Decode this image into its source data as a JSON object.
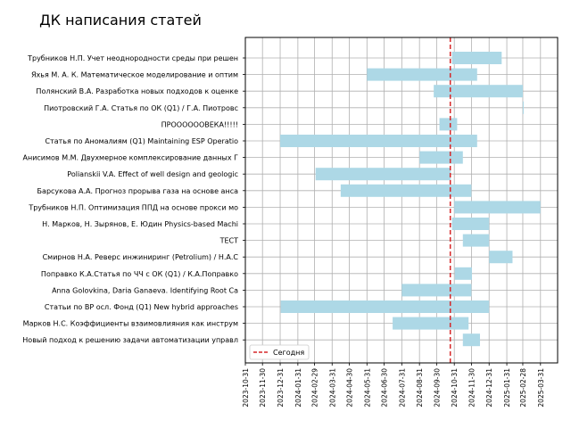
{
  "chart_data": {
    "type": "gantt",
    "title": "ДК написания статей",
    "xlabel": "",
    "ylabel": "",
    "xlim": [
      "2023-10-31",
      "2025-04-30"
    ],
    "grid": true,
    "x_ticks": [
      "2023-10-31",
      "2023-11-30",
      "2023-12-31",
      "2024-01-31",
      "2024-02-29",
      "2024-03-31",
      "2024-04-30",
      "2024-05-31",
      "2024-06-30",
      "2024-07-31",
      "2024-08-31",
      "2024-09-30",
      "2024-10-31",
      "2024-11-30",
      "2024-12-31",
      "2025-01-31",
      "2025-02-28",
      "2025-03-31"
    ],
    "bar_color": "#add8e6",
    "today": {
      "date": "2024-10-24",
      "label": "Сегодня",
      "color": "#d62728"
    },
    "legend_position": "lower-left",
    "tasks": [
      {
        "name": "Трубников Н.П. Учет неоднородности среды при решен",
        "start": "2024-10-27",
        "end": "2025-01-22"
      },
      {
        "name": "Яхья М. А. К. Математическое моделирование и оптим",
        "start": "2024-05-31",
        "end": "2024-12-10"
      },
      {
        "name": "Полянский В.А. Разработка новых подходов к оценке ",
        "start": "2024-09-25",
        "end": "2025-02-28"
      },
      {
        "name": "Пиотровский Г.А. Статья по ОК (Q1) / Г.А. Пиотровс",
        "start": "2025-02-28",
        "end": "2025-03-01"
      },
      {
        "name": "ПРООООООВЕКА!!!!!",
        "start": "2024-10-05",
        "end": "2024-11-05"
      },
      {
        "name": "Статья по Аномалиям (Q1)  Maintaining ESP Operatio",
        "start": "2023-12-31",
        "end": "2024-12-10"
      },
      {
        "name": "Анисимов М.М. Двухмерное комплексирование данных Г",
        "start": "2024-08-31",
        "end": "2024-11-15"
      },
      {
        "name": "Polianskii V.A. Effect of well design and geologic",
        "start": "2024-03-02",
        "end": "2024-10-25"
      },
      {
        "name": "Барсукова А.А. Прогноз прорыва газа на основе анса",
        "start": "2024-04-15",
        "end": "2024-11-30"
      },
      {
        "name": "Трубников Н.П. Оптимизация ППД на основе прокси мо",
        "start": "2024-10-31",
        "end": "2025-03-31"
      },
      {
        "name": "Н. Марков, Н. Зырянов, Е. Юдин Physics-based Machi",
        "start": "2024-10-27",
        "end": "2024-12-31"
      },
      {
        "name": "ТЕСТ",
        "start": "2024-11-15",
        "end": "2024-12-31"
      },
      {
        "name": "Смирнов Н.А. Реверс инжиниринг (Petrolium) / Н.А.С",
        "start": "2024-12-31",
        "end": "2025-02-10"
      },
      {
        "name": "Поправко К.А.Статья по ЧЧ с ОК (Q1) / К.А.Поправко",
        "start": "2024-11-01",
        "end": "2024-12-01"
      },
      {
        "name": "Anna Golovkina, Daria Ganaeva. Identifying Root Ca",
        "start": "2024-07-31",
        "end": "2024-11-30"
      },
      {
        "name": "Статьи по ВР осл. Фонд (Q1) New hybrid approaches ",
        "start": "2024-01-01",
        "end": "2024-12-31"
      },
      {
        "name": "Марков Н.С. Коэффициенты взаимовлияния как инструм",
        "start": "2024-07-15",
        "end": "2024-11-25"
      },
      {
        "name": "Новый подход к решению задачи автоматизации управл",
        "start": "2024-11-15",
        "end": "2024-12-15"
      }
    ]
  }
}
